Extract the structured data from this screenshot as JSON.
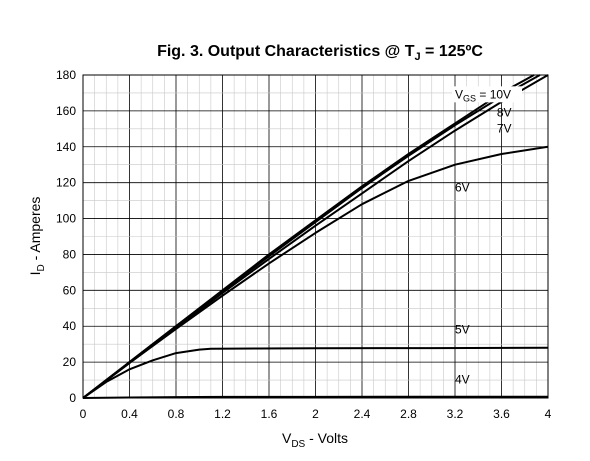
{
  "chart_data": {
    "type": "line",
    "title": {
      "text": "Fig. 3. Output Characteristics @ T",
      "sub": "J",
      "suffix": " = 125ºC"
    },
    "xlabel": {
      "main": "V",
      "sub": "DS",
      "rest": " - Volts"
    },
    "ylabel": {
      "main": "I",
      "sub": "D",
      "rest": " - Amperes"
    },
    "xlim": [
      0,
      4
    ],
    "ylim": [
      0,
      180
    ],
    "xticks": [
      "0",
      "0.4",
      "0.8",
      "1.2",
      "1.6",
      "2",
      "2.4",
      "2.8",
      "3.2",
      "3.6",
      "4"
    ],
    "yticks": [
      "0",
      "20",
      "40",
      "60",
      "80",
      "100",
      "120",
      "140",
      "160",
      "180"
    ],
    "grid": true,
    "annotations": [
      {
        "main": "V",
        "sub": "GS",
        "rest": " = 10V",
        "x": 3.2,
        "y": 167
      },
      {
        "main": "8V",
        "x": 3.56,
        "y": 157
      },
      {
        "main": "7V",
        "x": 3.56,
        "y": 148
      },
      {
        "main": "6V",
        "x": 3.2,
        "y": 115
      },
      {
        "main": "5V",
        "x": 3.2,
        "y": 36
      },
      {
        "main": "4V",
        "x": 3.2,
        "y": 8
      }
    ],
    "series": [
      {
        "label": "10V",
        "x": [
          0,
          0.4,
          0.8,
          1.2,
          1.6,
          2.0,
          2.4,
          2.8,
          3.2,
          3.6,
          3.88
        ],
        "y": [
          0,
          20,
          40,
          60,
          80,
          99,
          118,
          136,
          153,
          170,
          180
        ]
      },
      {
        "label": "8V",
        "x": [
          0,
          0.4,
          0.8,
          1.2,
          1.6,
          2.0,
          2.4,
          2.8,
          3.2,
          3.6,
          3.93
        ],
        "y": [
          0,
          20,
          40,
          59.5,
          79,
          98,
          117,
          135,
          152,
          168,
          180
        ]
      },
      {
        "label": "7V",
        "x": [
          0,
          0.4,
          0.8,
          1.2,
          1.6,
          2.0,
          2.4,
          2.8,
          3.2,
          3.6,
          4.0
        ],
        "y": [
          0,
          19.5,
          39,
          58.5,
          77.5,
          96,
          114,
          132,
          149,
          165,
          180
        ]
      },
      {
        "label": "6V",
        "x": [
          0,
          0.4,
          0.8,
          1.2,
          1.6,
          2.0,
          2.4,
          2.8,
          3.2,
          3.6,
          4.0
        ],
        "y": [
          0,
          19.5,
          38.5,
          57,
          75,
          92,
          108,
          121,
          130,
          136,
          140
        ]
      },
      {
        "label": "5V",
        "x": [
          0,
          0.2,
          0.4,
          0.6,
          0.8,
          1.0,
          1.1,
          1.5,
          2.0,
          3.0,
          4.0
        ],
        "y": [
          0,
          9,
          16,
          21,
          25,
          27,
          27.5,
          27.6,
          27.7,
          27.8,
          28
        ]
      },
      {
        "label": "4V",
        "x": [
          0,
          0.4,
          0.8,
          1.2,
          2.0,
          3.0,
          4.0
        ],
        "y": [
          0,
          0.3,
          0.5,
          0.6,
          0.6,
          0.7,
          0.7
        ]
      }
    ]
  }
}
